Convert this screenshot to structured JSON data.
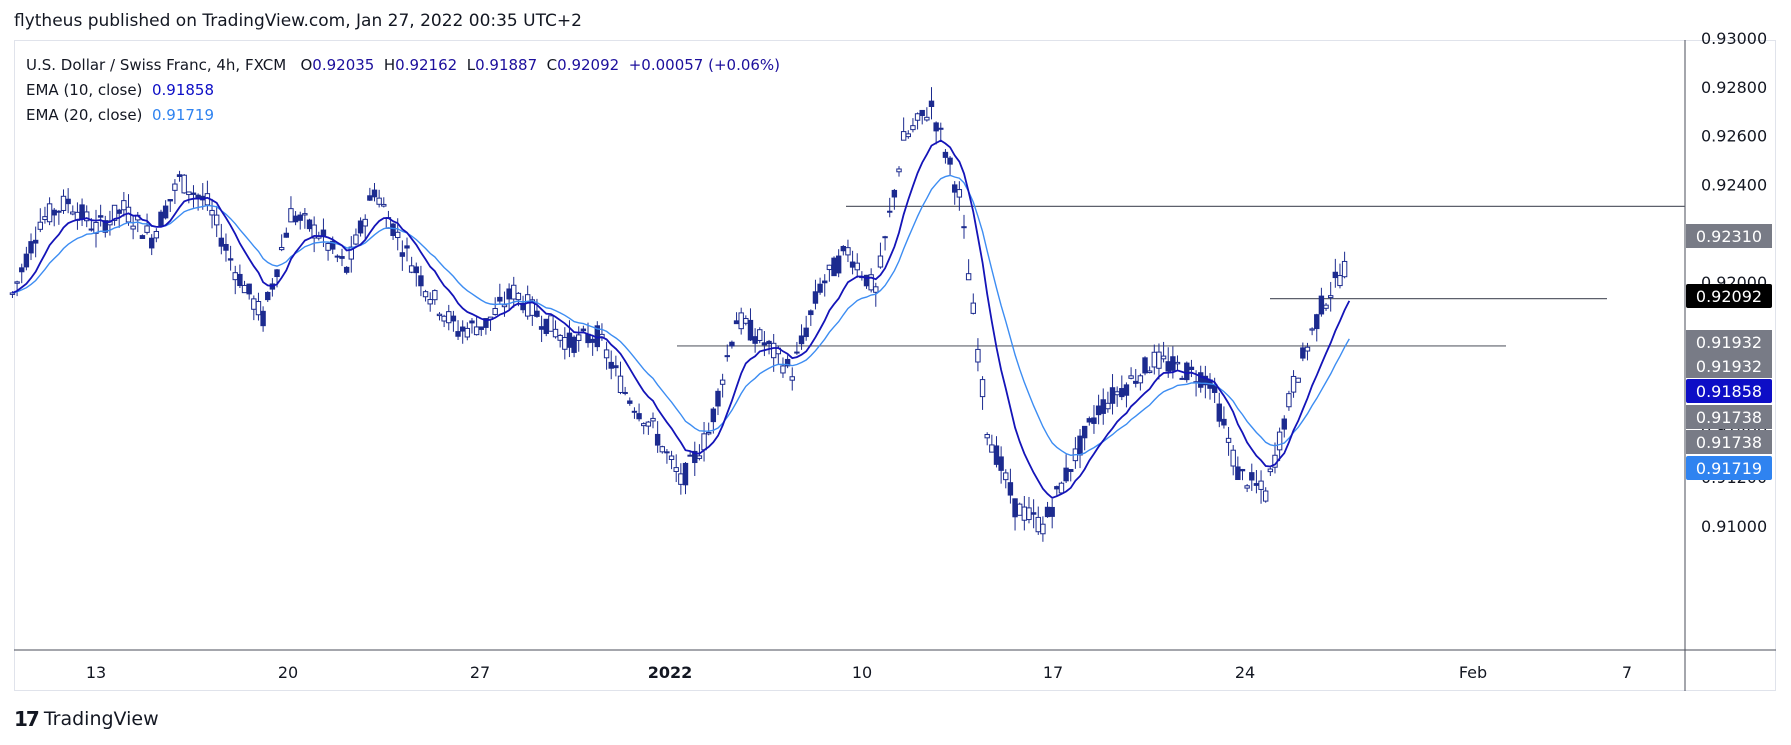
{
  "header": {
    "published": "flytheus published on TradingView.com, Jan 27, 2022 00:35 UTC+2"
  },
  "legend": {
    "symbol": "U.S. Dollar / Swiss Franc, 4h, FXCM",
    "o_label": "O",
    "o_value": "0.92035",
    "h_label": "H",
    "h_value": "0.92162",
    "l_label": "L",
    "l_value": "0.91887",
    "c_label": "C",
    "c_value": "0.92092",
    "change": "+0.00057 (+0.06%)",
    "ema10_label": "EMA (10, close)",
    "ema10_value": "0.91858",
    "ema20_label": "EMA (20, close)",
    "ema20_value": "0.91719"
  },
  "footer": {
    "brand": "TradingView",
    "logo": "17"
  },
  "colors": {
    "candle": "#1c2b8f",
    "ema10": "#1414b8",
    "ema20": "#3d8df2",
    "grid_border": "#e0e3eb",
    "hline": "#5d606b"
  },
  "chart_data": {
    "type": "candlestick",
    "title": "U.S. Dollar / Swiss Franc, 4h, FXCM",
    "ylim": [
      0.909,
      0.9301
    ],
    "y_ticks": [
      "0.93000",
      "0.92800",
      "0.92600",
      "0.92400",
      "0.92200",
      "0.92000",
      "0.91400",
      "0.91200",
      "0.91000"
    ],
    "x_ticks": [
      "13",
      "20",
      "27",
      "2022",
      "10",
      "17",
      "24",
      "Feb",
      "7"
    ],
    "horizontal_lines": [
      {
        "y": 0.9231,
        "from": "Jan 9",
        "to": "right edge"
      },
      {
        "y": 0.91932,
        "from": "Jan 26",
        "to": "Feb 4"
      },
      {
        "y": 0.91738,
        "from": "Jan 1",
        "to": "Feb 1"
      }
    ],
    "price_labels": [
      {
        "value": "0.92310",
        "kind": "line"
      },
      {
        "value": "0.92092",
        "kind": "last"
      },
      {
        "value": "0.91932",
        "kind": "line"
      },
      {
        "value": "0.91932",
        "kind": "line"
      },
      {
        "value": "0.91858",
        "kind": "ema10"
      },
      {
        "value": "0.91738",
        "kind": "line"
      },
      {
        "value": "0.91738",
        "kind": "line"
      },
      {
        "value": "0.91719",
        "kind": "ema20"
      }
    ],
    "close_path": [
      {
        "x": "Dec 10",
        "y": 0.9195
      },
      {
        "x": "Dec 11",
        "y": 0.9225
      },
      {
        "x": "Dec 12",
        "y": 0.9233
      },
      {
        "x": "Dec 13",
        "y": 0.9222
      },
      {
        "x": "Dec 14",
        "y": 0.923
      },
      {
        "x": "Dec 15",
        "y": 0.9218
      },
      {
        "x": "Dec 16",
        "y": 0.9242
      },
      {
        "x": "Dec 17",
        "y": 0.9232
      },
      {
        "x": "Dec 18",
        "y": 0.9205
      },
      {
        "x": "Dec 19",
        "y": 0.9185
      },
      {
        "x": "Dec 20",
        "y": 0.9228
      },
      {
        "x": "Dec 21",
        "y": 0.922
      },
      {
        "x": "Dec 22",
        "y": 0.9205
      },
      {
        "x": "Dec 23",
        "y": 0.9238
      },
      {
        "x": "Dec 24",
        "y": 0.9215
      },
      {
        "x": "Dec 25",
        "y": 0.9195
      },
      {
        "x": "Dec 26",
        "y": 0.918
      },
      {
        "x": "Dec 27",
        "y": 0.9183
      },
      {
        "x": "Dec 28",
        "y": 0.9196
      },
      {
        "x": "Dec 29",
        "y": 0.9185
      },
      {
        "x": "Dec 30",
        "y": 0.9175
      },
      {
        "x": "Dec 31",
        "y": 0.9178
      },
      {
        "x": "Jan 1",
        "y": 0.9155
      },
      {
        "x": "Jan 2",
        "y": 0.914
      },
      {
        "x": "Jan 3",
        "y": 0.9118
      },
      {
        "x": "Jan 4",
        "y": 0.9138
      },
      {
        "x": "Jan 5",
        "y": 0.9185
      },
      {
        "x": "Jan 6",
        "y": 0.9175
      },
      {
        "x": "Jan 7",
        "y": 0.9163
      },
      {
        "x": "Jan 8",
        "y": 0.9198
      },
      {
        "x": "Jan 9",
        "y": 0.9213
      },
      {
        "x": "Jan 10",
        "y": 0.9196
      },
      {
        "x": "Jan 11",
        "y": 0.9258
      },
      {
        "x": "Jan 12",
        "y": 0.9272
      },
      {
        "x": "Jan 13",
        "y": 0.9235
      },
      {
        "x": "Jan 14",
        "y": 0.914
      },
      {
        "x": "Jan 15",
        "y": 0.9108
      },
      {
        "x": "Jan 16",
        "y": 0.91
      },
      {
        "x": "Jan 17",
        "y": 0.9125
      },
      {
        "x": "Jan 18",
        "y": 0.9148
      },
      {
        "x": "Jan 19",
        "y": 0.9158
      },
      {
        "x": "Jan 20",
        "y": 0.9168
      },
      {
        "x": "Jan 21",
        "y": 0.9164
      },
      {
        "x": "Jan 22",
        "y": 0.916
      },
      {
        "x": "Jan 23",
        "y": 0.9122
      },
      {
        "x": "Jan 24",
        "y": 0.9113
      },
      {
        "x": "Jan 25",
        "y": 0.9158
      },
      {
        "x": "Jan 26",
        "y": 0.919
      },
      {
        "x": "Jan 27",
        "y": 0.92092
      }
    ]
  }
}
